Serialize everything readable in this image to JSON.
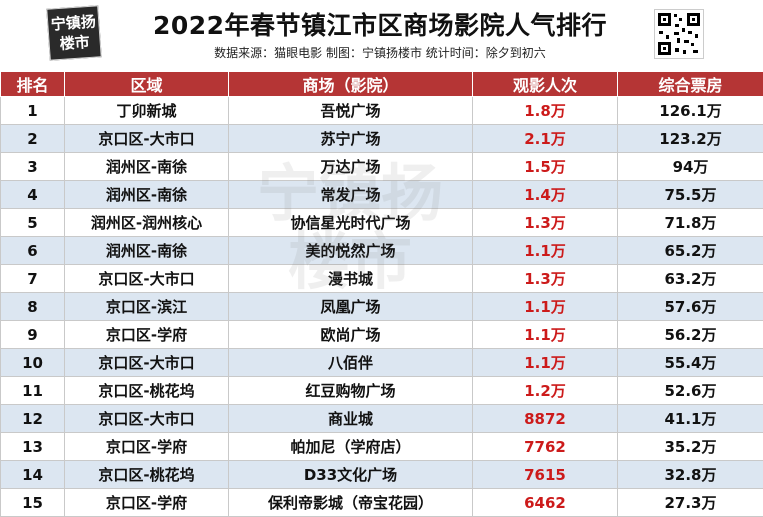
{
  "header": {
    "logo_line1": "宁镇扬",
    "logo_line2": "楼市",
    "title": "2022年春节镇江市区商场影院人气排行",
    "subtitle": "数据来源：猫眼电影 制图：宁镇扬楼市 统计时间：除夕到初六"
  },
  "colors": {
    "header_bg": "#b53535",
    "row_alt": "#dce6f1",
    "audience_text": "#cc1a1a"
  },
  "table": {
    "columns": [
      "排名",
      "区域",
      "商场（影院）",
      "观影人次",
      "综合票房"
    ],
    "rows": [
      {
        "rank": "1",
        "area": "丁卯新城",
        "mall": "吾悦广场",
        "audience": "1.8万",
        "box": "126.1万"
      },
      {
        "rank": "2",
        "area": "京口区-大市口",
        "mall": "苏宁广场",
        "audience": "2.1万",
        "box": "123.2万"
      },
      {
        "rank": "3",
        "area": "润州区-南徐",
        "mall": "万达广场",
        "audience": "1.5万",
        "box": "94万"
      },
      {
        "rank": "4",
        "area": "润州区-南徐",
        "mall": "常发广场",
        "audience": "1.4万",
        "box": "75.5万"
      },
      {
        "rank": "5",
        "area": "润州区-润州核心",
        "mall": "协信星光时代广场",
        "audience": "1.3万",
        "box": "71.8万"
      },
      {
        "rank": "6",
        "area": "润州区-南徐",
        "mall": "美的悦然广场",
        "audience": "1.1万",
        "box": "65.2万"
      },
      {
        "rank": "7",
        "area": "京口区-大市口",
        "mall": "漫书城",
        "audience": "1.3万",
        "box": "63.2万"
      },
      {
        "rank": "8",
        "area": "京口区-滨江",
        "mall": "凤凰广场",
        "audience": "1.1万",
        "box": "57.6万"
      },
      {
        "rank": "9",
        "area": "京口区-学府",
        "mall": "欧尚广场",
        "audience": "1.1万",
        "box": "56.2万"
      },
      {
        "rank": "10",
        "area": "京口区-大市口",
        "mall": "八佰伴",
        "audience": "1.1万",
        "box": "55.4万"
      },
      {
        "rank": "11",
        "area": "京口区-桃花坞",
        "mall": "红豆购物广场",
        "audience": "1.2万",
        "box": "52.6万"
      },
      {
        "rank": "12",
        "area": "京口区-大市口",
        "mall": "商业城",
        "audience": "8872",
        "box": "41.1万"
      },
      {
        "rank": "13",
        "area": "京口区-学府",
        "mall": "帕加尼（学府店）",
        "audience": "7762",
        "box": "35.2万"
      },
      {
        "rank": "14",
        "area": "京口区-桃花坞",
        "mall": "D33文化广场",
        "audience": "7615",
        "box": "32.8万"
      },
      {
        "rank": "15",
        "area": "京口区-学府",
        "mall": "保利帝影城（帝宝花园）",
        "audience": "6462",
        "box": "27.3万"
      }
    ]
  }
}
